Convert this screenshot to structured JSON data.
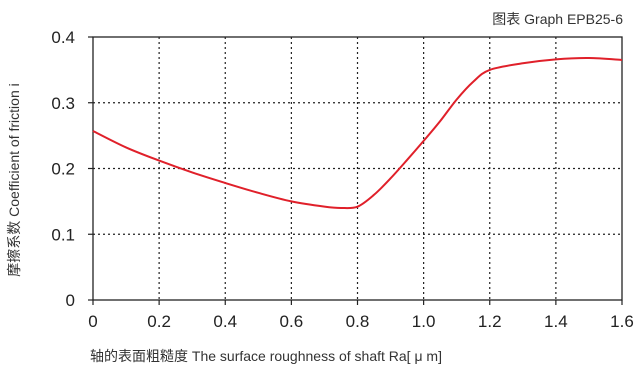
{
  "chart_data": {
    "type": "line",
    "note": "图表 Graph EPB25-6",
    "xlabel": "轴的表面粗糙度 The surface roughness of shaft  Ra[ μ m]",
    "ylabel": "摩擦系数 Coefficient of friction i",
    "xlim": [
      0,
      1.6
    ],
    "ylim": [
      0,
      0.4
    ],
    "xticks": [
      "0",
      "0.2",
      "0.4",
      "0.6",
      "0.8",
      "1.0",
      "1.2",
      "1.4",
      "1.6"
    ],
    "yticks": [
      "0",
      "0.1",
      "0.2",
      "0.3",
      "0.4"
    ],
    "grid": "dotted",
    "series": [
      {
        "color": "#e0202a",
        "x": [
          0.0,
          0.1,
          0.2,
          0.3,
          0.4,
          0.5,
          0.6,
          0.7,
          0.75,
          0.8,
          0.85,
          0.9,
          0.95,
          1.0,
          1.05,
          1.1,
          1.15,
          1.2,
          1.3,
          1.4,
          1.5,
          1.6
        ],
        "y": [
          0.257,
          0.232,
          0.212,
          0.194,
          0.178,
          0.163,
          0.15,
          0.142,
          0.14,
          0.142,
          0.16,
          0.185,
          0.213,
          0.242,
          0.272,
          0.305,
          0.332,
          0.35,
          0.36,
          0.366,
          0.368,
          0.365
        ]
      }
    ]
  }
}
